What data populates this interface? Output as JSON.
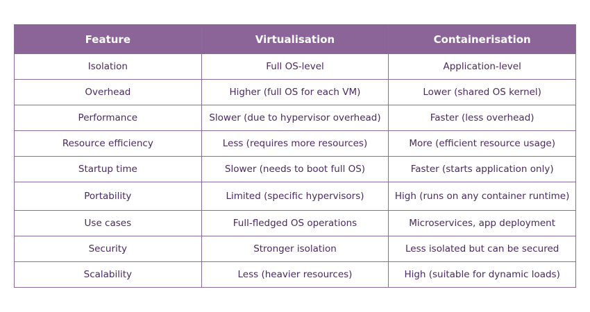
{
  "table": {
    "header": [
      "Feature",
      "Virtualisation",
      "Containerisation"
    ],
    "rows": [
      [
        "Isolation",
        "Full OS-level",
        "Application-level"
      ],
      [
        "Overhead",
        "Higher (full OS for each VM)",
        "Lower (shared OS kernel)"
      ],
      [
        "Performance",
        "Slower (due to hypervisor overhead)",
        "Faster (less overhead)"
      ],
      [
        "Resource efficiency",
        "Less (requires more resources)",
        "More (efficient resource usage)"
      ],
      [
        "Startup time",
        "Slower (needs to boot full OS)",
        "Faster (starts application only)"
      ],
      [
        "Portability",
        "Limited (specific hypervisors)",
        "High (runs on any container runtime)"
      ],
      [
        "Use cases",
        "Full-fledged OS operations",
        "Microservices, app deployment"
      ],
      [
        "Security",
        "Stronger isolation",
        "Less isolated but can be secured"
      ],
      [
        "Scalability",
        "Less (heavier resources)",
        "High (suitable for dynamic loads)"
      ]
    ]
  }
}
